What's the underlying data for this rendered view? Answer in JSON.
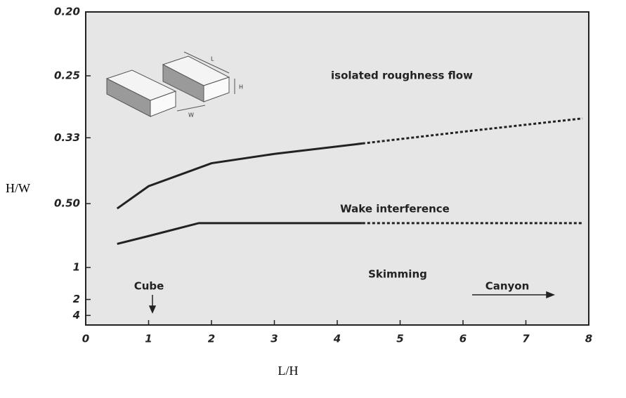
{
  "chart_data": {
    "type": "line",
    "x_label": "L/H",
    "y_label": "H/W",
    "y_scale": "reciprocal",
    "xlim": [
      0,
      8
    ],
    "xticks": [
      0,
      1,
      2,
      3,
      4,
      5,
      6,
      7,
      8
    ],
    "ylim": [
      10,
      0.2
    ],
    "yticks": [
      {
        "value": 0.2,
        "label": "0.20"
      },
      0.25,
      0.33,
      {
        "value": 0.5,
        "label": "0.50"
      },
      1,
      2,
      4
    ],
    "series": [
      {
        "color": "#222222",
        "dashed": false,
        "x": [
          0.5,
          1,
          2,
          3,
          4.4
        ],
        "values": [
          0.52,
          0.44,
          0.38,
          0.36,
          0.34
        ]
      },
      {
        "color": "#222222",
        "dashed": true,
        "x": [
          4.4,
          6,
          7.9
        ],
        "values": [
          0.34,
          0.32,
          0.3
        ]
      },
      {
        "color": "#222222",
        "dashed": false,
        "x": [
          0.5,
          1,
          1.8,
          4.4
        ],
        "values": [
          0.73,
          0.67,
          0.59,
          0.59
        ]
      },
      {
        "color": "#222222",
        "dashed": true,
        "x": [
          4.4,
          7.9
        ],
        "values": [
          0.59,
          0.59
        ]
      }
    ],
    "annotations": [
      "isolated roughness flow",
      "Wake interference",
      "Skimming",
      "Cube",
      "Canyon"
    ],
    "inset_labels": [
      "L",
      "H",
      "W"
    ]
  }
}
